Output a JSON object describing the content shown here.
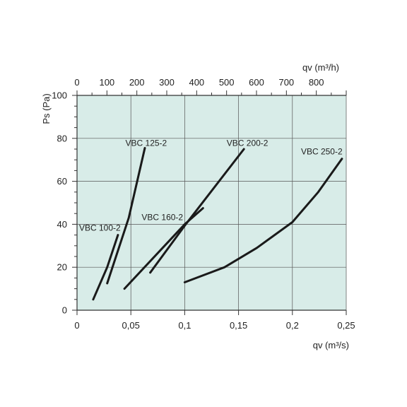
{
  "chart_data": {
    "type": "line",
    "title": "",
    "xlabel": "qv (m³/s)",
    "ylabel": "Ps (Pa)",
    "x2label": "qv (m³/h)",
    "xlim": [
      0,
      0.25
    ],
    "ylim": [
      0,
      100
    ],
    "x2lim": [
      0,
      900
    ],
    "grid": true,
    "background_color": "#d8ece8",
    "line_color": "#1a1a1a",
    "x_ticks": [
      0,
      0.05,
      0.1,
      0.15,
      0.2,
      0.25
    ],
    "x_tick_labels": [
      "0",
      "0,05",
      "0,1",
      "0,15",
      "0,2",
      "0,25"
    ],
    "y_ticks": [
      0,
      20,
      40,
      60,
      80,
      100
    ],
    "y_tick_labels": [
      "0",
      "20",
      "40",
      "60",
      "80",
      "100"
    ],
    "x2_ticks": [
      0,
      100,
      200,
      300,
      400,
      500,
      600,
      700,
      800
    ],
    "x2_tick_labels": [
      "0",
      "100",
      "200",
      "300",
      "400",
      "500",
      "600",
      "700",
      "800"
    ],
    "series": [
      {
        "name": "VBC 100-2",
        "points": [
          [
            0.015,
            5
          ],
          [
            0.028,
            20
          ],
          [
            0.038,
            35
          ]
        ]
      },
      {
        "name": "VBC 125-2",
        "points": [
          [
            0.028,
            12.5
          ],
          [
            0.048,
            43
          ],
          [
            0.063,
            75.5
          ]
        ]
      },
      {
        "name": "VBC 160-2",
        "points": [
          [
            0.044,
            10
          ],
          [
            0.1,
            40
          ],
          [
            0.117,
            47.5
          ]
        ]
      },
      {
        "name": "VBC 200-2",
        "points": [
          [
            0.068,
            17.5
          ],
          [
            0.101,
            40
          ],
          [
            0.155,
            75
          ]
        ]
      },
      {
        "name": "VBC 250-2",
        "points": [
          [
            0.1,
            13
          ],
          [
            0.137,
            20
          ],
          [
            0.167,
            29
          ],
          [
            0.2,
            41
          ],
          [
            0.224,
            55
          ],
          [
            0.246,
            70.5
          ]
        ]
      }
    ]
  }
}
